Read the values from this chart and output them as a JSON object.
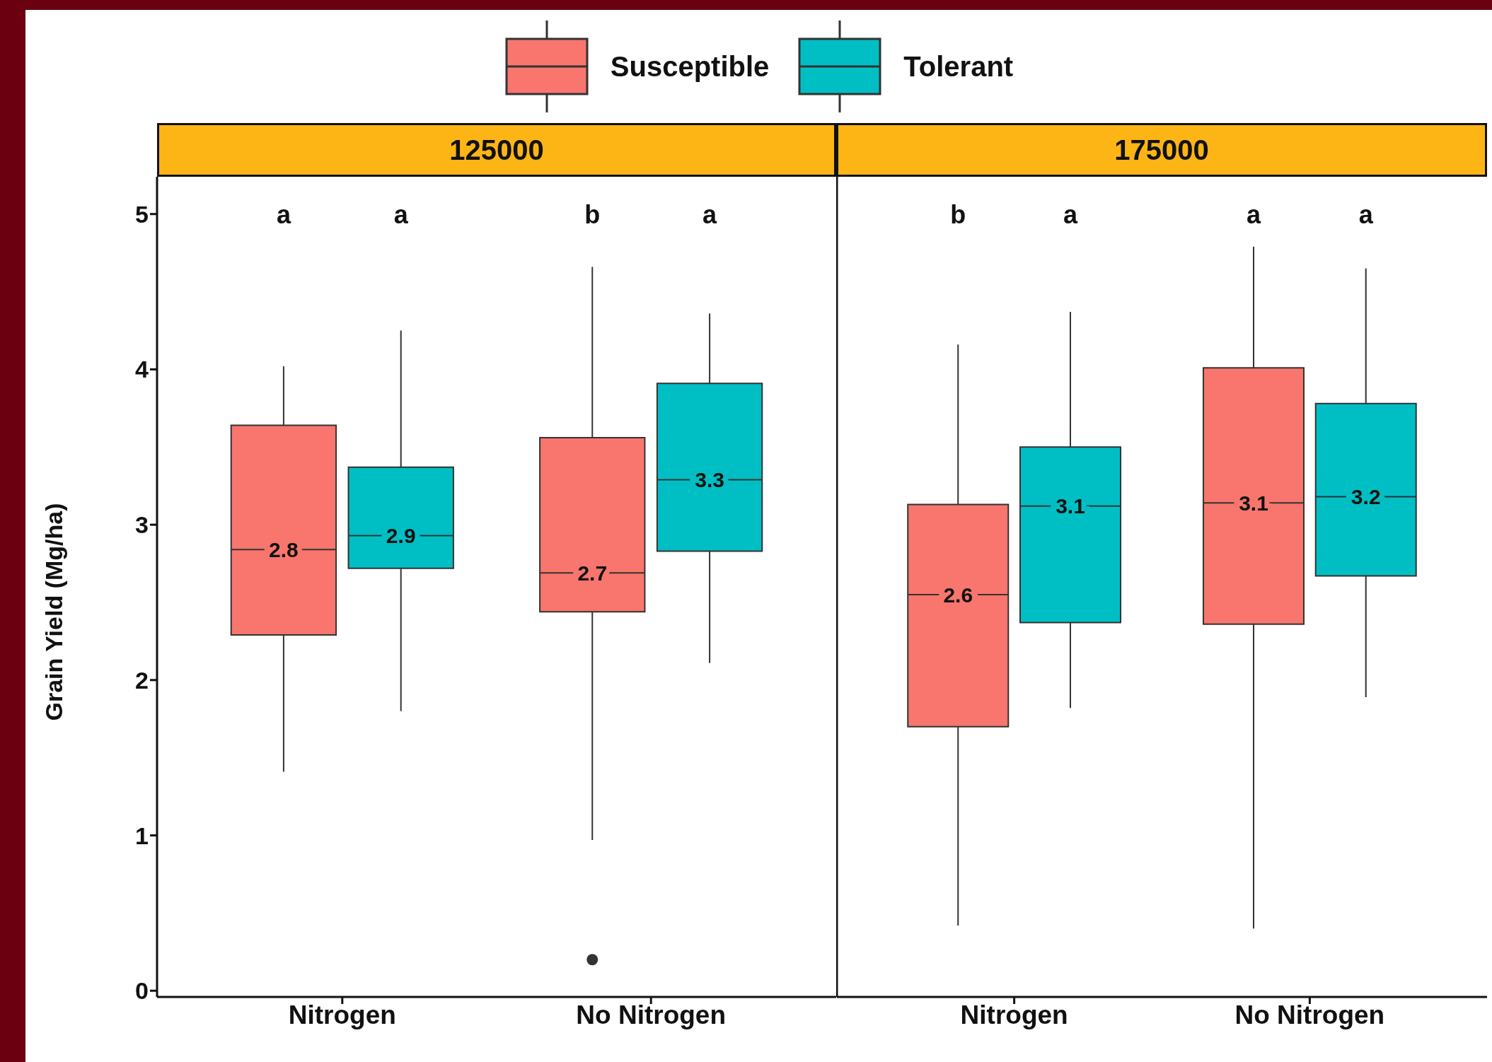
{
  "chart_data": [
    {
      "type": "box",
      "title": "125000",
      "ylabel": "Grain Yield (Mg/ha)",
      "categories": [
        "Nitrogen",
        "No Nitrogen"
      ],
      "ylim": [
        -0.04,
        5.24
      ],
      "yticks": [
        0,
        1,
        2,
        3,
        4,
        5
      ],
      "legend": "top",
      "series": [
        {
          "name": "Susceptible",
          "color": "#f8766d",
          "value_labels": [
            "2.8",
            "2.7"
          ],
          "boxes": [
            {
              "low": 1.41,
              "q1": 2.29,
              "median": 2.84,
              "q3": 3.64,
              "high": 4.02
            },
            {
              "low": 0.97,
              "q1": 2.44,
              "median": 2.69,
              "q3": 3.56,
              "high": 4.66,
              "outliers": [
                0.2
              ]
            }
          ]
        },
        {
          "name": "Tolerant",
          "color": "#00bfc4",
          "value_labels": [
            "2.9",
            "3.3"
          ],
          "boxes": [
            {
              "low": 1.8,
              "q1": 2.72,
              "median": 2.93,
              "q3": 3.37,
              "high": 4.25
            },
            {
              "low": 2.11,
              "q1": 2.83,
              "median": 3.29,
              "q3": 3.91,
              "high": 4.36
            }
          ]
        }
      ],
      "annotations": [
        "a",
        "a",
        "b",
        "a"
      ]
    },
    {
      "type": "box",
      "title": "175000",
      "categories": [
        "Nitrogen",
        "No Nitrogen"
      ],
      "ylim": [
        -0.04,
        5.24
      ],
      "tick_labels": "x",
      "series": [
        {
          "color": "#f8766d",
          "value_labels": [
            "2.6",
            "3.1"
          ],
          "boxes": [
            {
              "low": 0.42,
              "q1": 1.7,
              "median": 2.55,
              "q3": 3.13,
              "high": 4.16
            },
            {
              "low": 0.4,
              "q1": 2.36,
              "median": 3.14,
              "q3": 4.01,
              "high": 4.79
            }
          ]
        },
        {
          "color": "#00bfc4",
          "value_labels": [
            "3.1",
            "3.2"
          ],
          "boxes": [
            {
              "low": 1.82,
              "q1": 2.37,
              "median": 3.12,
              "q3": 3.5,
              "high": 4.37
            },
            {
              "low": 1.89,
              "q1": 2.67,
              "median": 3.18,
              "q3": 3.78,
              "high": 4.65
            }
          ]
        }
      ],
      "annotations": [
        "b",
        "a",
        "a",
        "a"
      ]
    }
  ]
}
